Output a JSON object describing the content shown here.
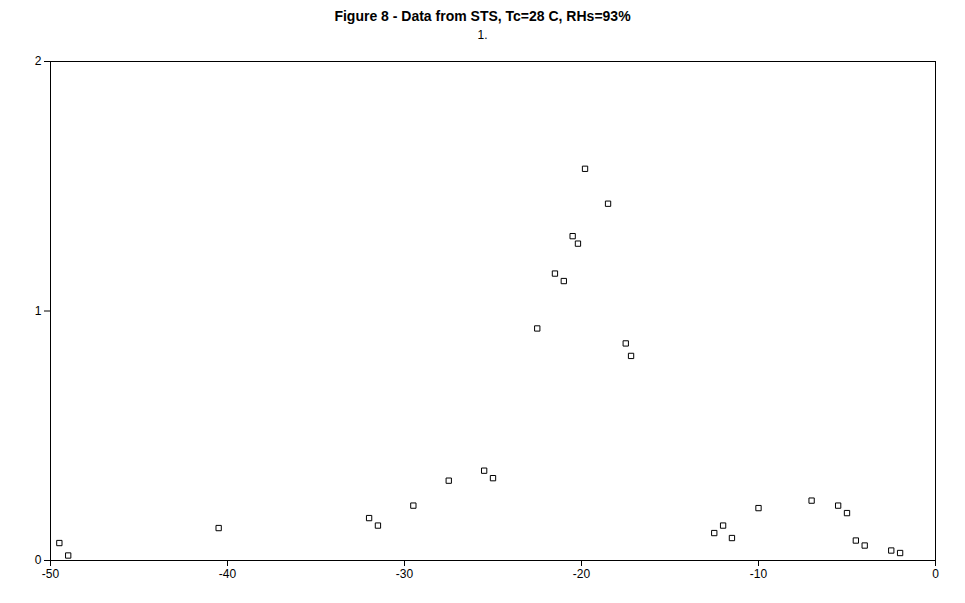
{
  "chart_data": {
    "type": "scatter",
    "title": "Figure 8 - Data from STS, Tc=28 C, RHs=93%",
    "subtitle": "1.",
    "x": [
      -49.5,
      -49.0,
      -40.5,
      -32.0,
      -31.5,
      -29.5,
      -27.5,
      -25.5,
      -25.0,
      -22.5,
      -21.5,
      -21.0,
      -20.5,
      -20.2,
      -19.8,
      -18.5,
      -17.5,
      -17.2,
      -12.5,
      -12.0,
      -11.5,
      -10.0,
      -7.0,
      -5.5,
      -5.0,
      -4.5,
      -4.0,
      -2.5,
      -2.0
    ],
    "values": [
      0.07,
      0.02,
      0.13,
      0.17,
      0.14,
      0.22,
      0.32,
      0.36,
      0.33,
      0.93,
      1.15,
      1.12,
      1.3,
      1.27,
      1.57,
      1.43,
      0.87,
      0.82,
      0.11,
      0.14,
      0.09,
      0.21,
      0.24,
      0.22,
      0.19,
      0.08,
      0.06,
      0.04,
      0.03
    ],
    "color": "black",
    "marker": "square",
    "xlim": [
      -50,
      0
    ],
    "ylim": [
      0,
      2
    ],
    "xticks": [
      -50,
      -40,
      -30,
      -20,
      -10,
      0
    ],
    "yticks": [
      0,
      1,
      2
    ],
    "grid": false
  }
}
